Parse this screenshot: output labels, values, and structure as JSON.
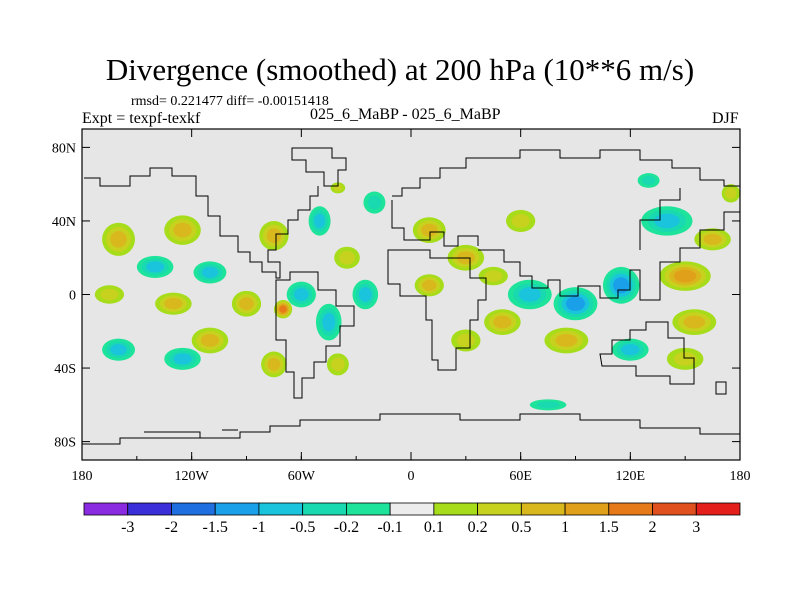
{
  "chart_data": {
    "type": "heatmap",
    "title": "Divergence (smoothed) at 200 hPa (10**6 m/s)",
    "stats": "rmsd= 0.221477 diff= -0.00151418",
    "experiment": "Expt = texpf-texkf",
    "case": "025_6_MaBP - 025_6_MaBP",
    "season": "DJF",
    "xlim": [
      -180,
      180
    ],
    "ylim": [
      -90,
      90
    ],
    "x_ticks": [
      {
        "value": -180,
        "label": "180"
      },
      {
        "value": -120,
        "label": "120W"
      },
      {
        "value": -60,
        "label": "60W"
      },
      {
        "value": 0,
        "label": "0"
      },
      {
        "value": 60,
        "label": "60E"
      },
      {
        "value": 120,
        "label": "120E"
      },
      {
        "value": 180,
        "label": "180"
      }
    ],
    "y_ticks": [
      {
        "value": 80,
        "label": "80N"
      },
      {
        "value": 40,
        "label": "40N"
      },
      {
        "value": 0,
        "label": "0"
      },
      {
        "value": -40,
        "label": "40S"
      },
      {
        "value": -80,
        "label": "80S"
      }
    ],
    "colorbar": {
      "colors": [
        "#8a2be2",
        "#3a2fd8",
        "#1f6fe0",
        "#1aa0e8",
        "#19c4dc",
        "#19d9b0",
        "#1ee39a",
        "#ececec",
        "#a6dc1a",
        "#c6d21e",
        "#d9b81e",
        "#e0a019",
        "#e67a19",
        "#e0501e",
        "#e41e1a"
      ],
      "labels": [
        "-3",
        "-2",
        "-1.5",
        "-1",
        "-0.5",
        "-0.2",
        "-0.1",
        "0.1",
        "0.2",
        "0.5",
        "1",
        "1.5",
        "2",
        "3"
      ]
    },
    "anomalies": [
      {
        "lon": -160,
        "lat": 30,
        "level": 0.5,
        "rlon": 9,
        "rlat": 9
      },
      {
        "lon": -125,
        "lat": 35,
        "level": 0.5,
        "rlon": 10,
        "rlat": 8
      },
      {
        "lon": -140,
        "lat": 15,
        "level": -0.5,
        "rlon": 10,
        "rlat": 6
      },
      {
        "lon": -110,
        "lat": 12,
        "level": -0.5,
        "rlon": 9,
        "rlat": 6
      },
      {
        "lon": -165,
        "lat": 0,
        "level": 0.2,
        "rlon": 8,
        "rlat": 5
      },
      {
        "lon": -130,
        "lat": -5,
        "level": 0.5,
        "rlon": 10,
        "rlat": 6
      },
      {
        "lon": -90,
        "lat": -5,
        "level": 0.5,
        "rlon": 8,
        "rlat": 7
      },
      {
        "lon": -70,
        "lat": -8,
        "level": 1.5,
        "rlon": 5,
        "rlat": 5
      },
      {
        "lon": -60,
        "lat": 0,
        "level": -0.5,
        "rlon": 8,
        "rlat": 7
      },
      {
        "lon": -45,
        "lat": -15,
        "level": -0.5,
        "rlon": 7,
        "rlat": 10
      },
      {
        "lon": -25,
        "lat": 0,
        "level": -0.5,
        "rlon": 7,
        "rlat": 8
      },
      {
        "lon": -35,
        "lat": 20,
        "level": 0.2,
        "rlon": 7,
        "rlat": 6
      },
      {
        "lon": -75,
        "lat": 32,
        "level": 0.5,
        "rlon": 8,
        "rlat": 8
      },
      {
        "lon": -110,
        "lat": -25,
        "level": 0.5,
        "rlon": 10,
        "rlat": 7
      },
      {
        "lon": -160,
        "lat": -30,
        "level": -0.5,
        "rlon": 9,
        "rlat": 6
      },
      {
        "lon": -125,
        "lat": -35,
        "level": -0.5,
        "rlon": 10,
        "rlat": 6
      },
      {
        "lon": -75,
        "lat": -38,
        "level": 0.5,
        "rlon": 7,
        "rlat": 7
      },
      {
        "lon": -40,
        "lat": -38,
        "level": 0.2,
        "rlon": 6,
        "rlat": 6
      },
      {
        "lon": -50,
        "lat": 40,
        "level": -0.5,
        "rlon": 6,
        "rlat": 8
      },
      {
        "lon": -20,
        "lat": 50,
        "level": -0.2,
        "rlon": 6,
        "rlat": 6
      },
      {
        "lon": 10,
        "lat": 35,
        "level": 0.5,
        "rlon": 9,
        "rlat": 7
      },
      {
        "lon": 30,
        "lat": 20,
        "level": 0.5,
        "rlon": 10,
        "rlat": 7
      },
      {
        "lon": 10,
        "lat": 5,
        "level": 0.5,
        "rlon": 8,
        "rlat": 6
      },
      {
        "lon": 45,
        "lat": 10,
        "level": 0.2,
        "rlon": 8,
        "rlat": 5
      },
      {
        "lon": 65,
        "lat": 0,
        "level": -0.5,
        "rlon": 12,
        "rlat": 8
      },
      {
        "lon": 90,
        "lat": -5,
        "level": -1,
        "rlon": 12,
        "rlat": 9
      },
      {
        "lon": 115,
        "lat": 5,
        "level": -1,
        "rlon": 10,
        "rlat": 10
      },
      {
        "lon": 50,
        "lat": -15,
        "level": 0.5,
        "rlon": 10,
        "rlat": 7
      },
      {
        "lon": 85,
        "lat": -25,
        "level": 0.5,
        "rlon": 12,
        "rlat": 7
      },
      {
        "lon": 30,
        "lat": -25,
        "level": 0.2,
        "rlon": 8,
        "rlat": 6
      },
      {
        "lon": 150,
        "lat": 10,
        "level": 1,
        "rlon": 14,
        "rlat": 8
      },
      {
        "lon": 155,
        "lat": -15,
        "level": 0.5,
        "rlon": 12,
        "rlat": 7
      },
      {
        "lon": 140,
        "lat": 40,
        "level": -0.5,
        "rlon": 14,
        "rlat": 8
      },
      {
        "lon": 165,
        "lat": 30,
        "level": 0.5,
        "rlon": 10,
        "rlat": 6
      },
      {
        "lon": 120,
        "lat": -30,
        "level": -0.5,
        "rlon": 10,
        "rlat": 6
      },
      {
        "lon": 150,
        "lat": -35,
        "level": 0.2,
        "rlon": 10,
        "rlat": 6
      },
      {
        "lon": 60,
        "lat": 40,
        "level": 0.2,
        "rlon": 8,
        "rlat": 6
      },
      {
        "lon": 175,
        "lat": 55,
        "level": 0.2,
        "rlon": 5,
        "rlat": 5
      },
      {
        "lon": 75,
        "lat": -60,
        "level": -0.2,
        "rlon": 10,
        "rlat": 3
      },
      {
        "lon": 130,
        "lat": 62,
        "level": -0.2,
        "rlon": 6,
        "rlat": 4
      },
      {
        "lon": -40,
        "lat": 58,
        "level": 0.2,
        "rlon": 4,
        "rlat": 3
      }
    ]
  }
}
